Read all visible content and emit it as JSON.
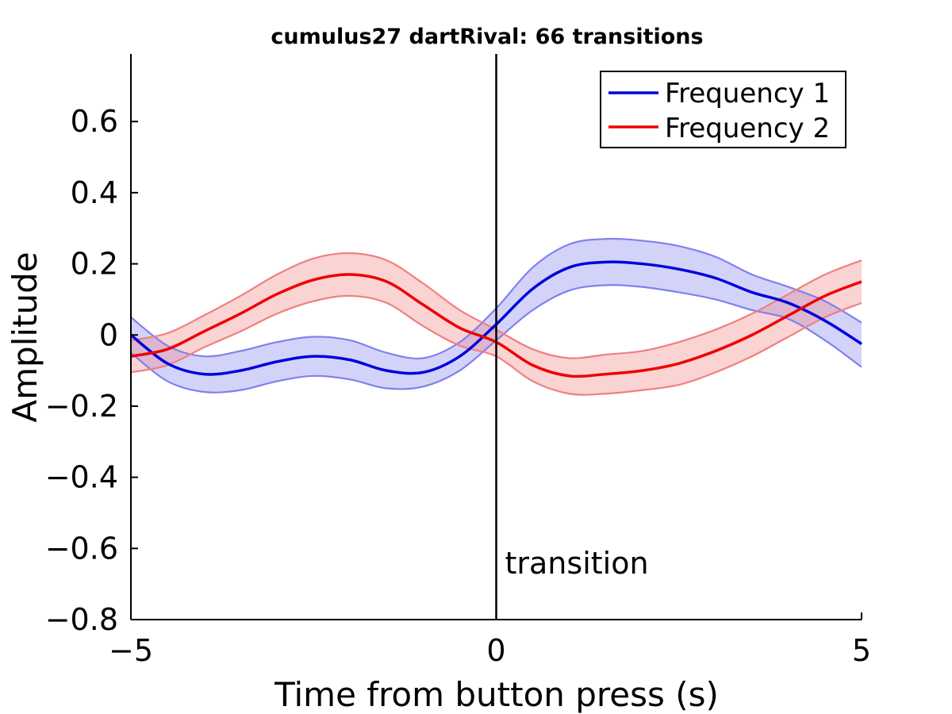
{
  "chart_data": {
    "type": "line",
    "title": "cumulus27 dartRival: 66 transitions",
    "xlabel": "Time from button press (s)",
    "ylabel": "Amplitude",
    "xlim": [
      -5,
      5
    ],
    "ylim": [
      -0.8,
      0.8
    ],
    "xticks": [
      -5,
      0,
      5
    ],
    "xtick_labels": [
      "−5",
      "0",
      "5"
    ],
    "yticks": [
      -0.8,
      -0.6,
      -0.4,
      -0.2,
      0,
      0.2,
      0.4,
      0.6
    ],
    "ytick_labels": [
      "−0.8",
      "−0.6",
      "−0.4",
      "−0.2",
      "0",
      "0.2",
      "0.4",
      "0.6"
    ],
    "grid": false,
    "legend_position": "top-right",
    "x": [
      -5.0,
      -4.5,
      -4.0,
      -3.5,
      -3.0,
      -2.5,
      -2.0,
      -1.5,
      -1.0,
      -0.5,
      0.0,
      0.5,
      1.0,
      1.5,
      2.0,
      2.5,
      3.0,
      3.5,
      4.0,
      4.5,
      5.0
    ],
    "series": [
      {
        "name": "Frequency 1",
        "color": "#0000dd",
        "band_color": "#8080ee",
        "values": [
          0.0,
          -0.08,
          -0.11,
          -0.1,
          -0.075,
          -0.06,
          -0.07,
          -0.1,
          -0.105,
          -0.06,
          0.03,
          0.13,
          0.19,
          0.205,
          0.2,
          0.185,
          0.16,
          0.12,
          0.09,
          0.04,
          -0.025
        ],
        "upper": [
          0.05,
          -0.03,
          -0.06,
          -0.045,
          -0.02,
          -0.005,
          -0.015,
          -0.05,
          -0.065,
          -0.02,
          0.075,
          0.19,
          0.255,
          0.27,
          0.265,
          0.25,
          0.22,
          0.17,
          0.135,
          0.095,
          0.035
        ],
        "lower": [
          -0.05,
          -0.13,
          -0.16,
          -0.155,
          -0.13,
          -0.115,
          -0.125,
          -0.15,
          -0.145,
          -0.1,
          -0.015,
          0.07,
          0.125,
          0.14,
          0.135,
          0.12,
          0.1,
          0.07,
          0.045,
          -0.015,
          -0.09
        ]
      },
      {
        "name": "Frequency 2",
        "color": "#ee0000",
        "band_color": "#f08080",
        "values": [
          -0.06,
          -0.04,
          0.01,
          0.06,
          0.115,
          0.155,
          0.17,
          0.15,
          0.085,
          0.02,
          -0.02,
          -0.085,
          -0.115,
          -0.11,
          -0.1,
          -0.08,
          -0.045,
          0.0,
          0.055,
          0.11,
          0.15
        ],
        "upper": [
          -0.015,
          0.005,
          0.055,
          0.11,
          0.17,
          0.215,
          0.23,
          0.21,
          0.145,
          0.07,
          0.015,
          -0.04,
          -0.065,
          -0.055,
          -0.045,
          -0.02,
          0.015,
          0.06,
          0.115,
          0.17,
          0.21
        ],
        "lower": [
          -0.105,
          -0.085,
          -0.035,
          0.01,
          0.06,
          0.095,
          0.11,
          0.09,
          0.025,
          -0.03,
          -0.06,
          -0.13,
          -0.165,
          -0.165,
          -0.155,
          -0.14,
          -0.105,
          -0.06,
          -0.005,
          0.05,
          0.09
        ]
      }
    ],
    "annotation": {
      "text": "transition",
      "x": 0
    }
  }
}
